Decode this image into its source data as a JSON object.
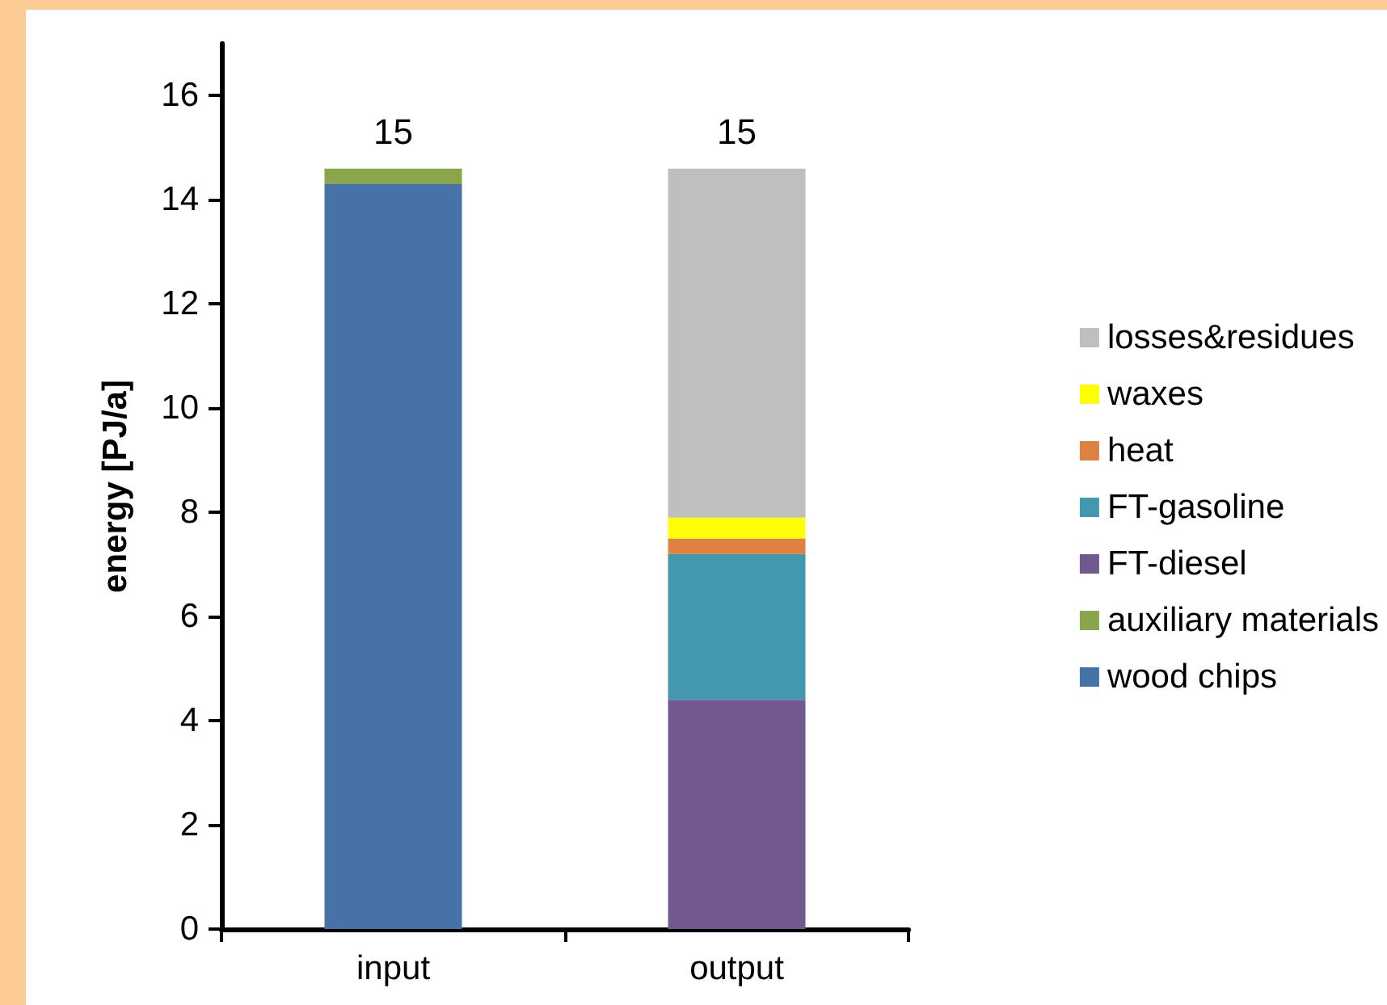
{
  "chart_data": {
    "type": "bar",
    "stacked": true,
    "ylabel": "energy [PJ/a]",
    "categories": [
      "input",
      "output"
    ],
    "series": [
      {
        "name": "wood chips",
        "color": "#4672a8",
        "values": [
          14.3,
          null
        ]
      },
      {
        "name": "auxiliary materials",
        "color": "#8aa64b",
        "values": [
          0.3,
          null
        ]
      },
      {
        "name": "FT-diesel",
        "color": "#71588f",
        "values": [
          null,
          4.4
        ]
      },
      {
        "name": "FT-gasoline",
        "color": "#4397ae",
        "values": [
          null,
          2.8
        ]
      },
      {
        "name": "heat",
        "color": "#dd8241",
        "values": [
          null,
          0.3
        ]
      },
      {
        "name": "waxes",
        "color": "#ffff00",
        "values": [
          null,
          0.4
        ]
      },
      {
        "name": "losses&residues",
        "color": "#bfbfbf",
        "values": [
          null,
          6.7
        ]
      }
    ],
    "totals": [
      "15",
      "15"
    ],
    "ylim": [
      0,
      17
    ],
    "yticks": [
      0,
      2,
      4,
      6,
      8,
      10,
      12,
      14,
      16
    ],
    "grid": false,
    "legend": "right"
  }
}
